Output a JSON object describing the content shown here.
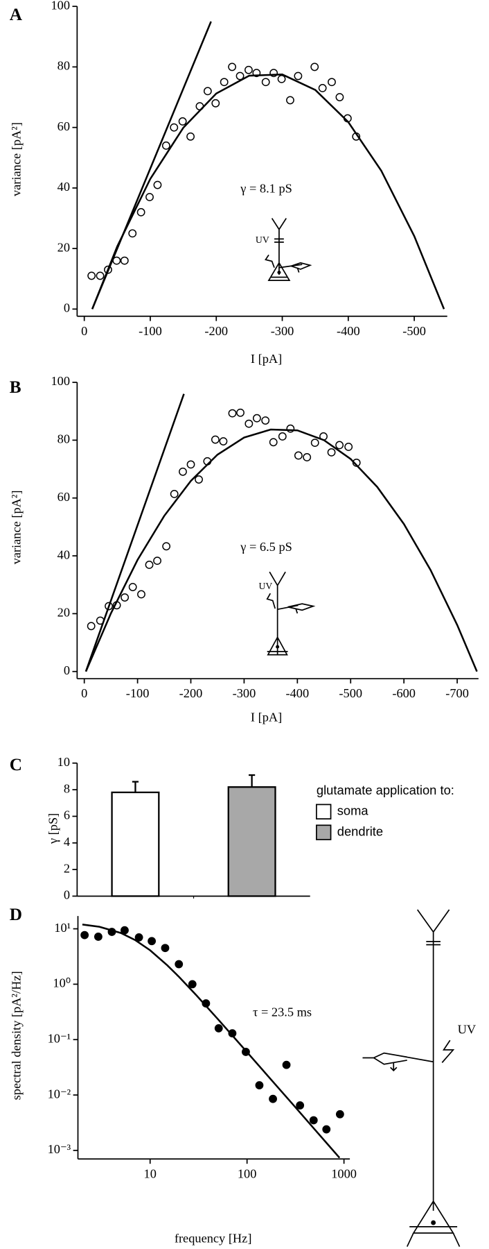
{
  "chart_data": [
    {
      "type": "scatter",
      "panel": "A",
      "xlabel": "I [pA]",
      "ylabel": "variance [pA²]",
      "annotation": "γ = 8.1 pS",
      "icon_label": "UV",
      "xlim": [
        0,
        -550
      ],
      "ylim": [
        0,
        100
      ],
      "xticks": [
        0,
        -100,
        -200,
        -300,
        -400,
        -500
      ],
      "yticks": [
        0,
        20,
        40,
        60,
        80,
        100
      ],
      "color": "#000000",
      "marker_fill": "none",
      "x": [
        -11,
        -24,
        -36,
        -49,
        -61,
        -73,
        -86,
        -99,
        -111,
        -124,
        -136,
        -149,
        -161,
        -175,
        -187,
        -199,
        -212,
        -224,
        -236,
        -249,
        -261,
        -275,
        -287,
        -299,
        -312,
        -324,
        -349,
        -361,
        -375,
        -387,
        -399,
        -412
      ],
      "y": [
        11,
        11,
        13,
        16,
        16,
        25,
        32,
        37,
        41,
        54,
        60,
        62,
        57,
        67,
        72,
        68,
        75,
        80,
        77,
        79,
        78,
        75,
        78,
        76,
        69,
        77,
        80,
        73,
        75,
        70,
        63,
        57
      ],
      "fit": {
        "x": [
          -12,
          -50,
          -100,
          -150,
          -200,
          -250,
          -300,
          -350,
          -400,
          -450,
          -500,
          -545
        ],
        "y": [
          0,
          20.7,
          43.0,
          59.9,
          71.2,
          77.1,
          77.5,
          72.4,
          61.8,
          45.7,
          24.1,
          0
        ]
      },
      "tangent": {
        "x": [
          -12,
          -192
        ],
        "y": [
          0,
          95
        ]
      }
    },
    {
      "type": "scatter",
      "panel": "B",
      "xlabel": "I [pA]",
      "ylabel": "variance [pA²]",
      "annotation": "γ = 6.5 pS",
      "icon_label": "UV",
      "xlim": [
        0,
        -740
      ],
      "ylim": [
        0,
        100
      ],
      "xticks": [
        0,
        -100,
        -200,
        -300,
        -400,
        -500,
        -600,
        -700
      ],
      "yticks": [
        0,
        20,
        40,
        60,
        80,
        100
      ],
      "color": "#000000",
      "marker_fill": "none",
      "x": [
        -13,
        -30,
        -46,
        -61,
        -76,
        -91,
        -107,
        -122,
        -137,
        -154,
        -169,
        -185,
        -200,
        -215,
        -231,
        -246,
        -261,
        -278,
        -293,
        -309,
        -324,
        -340,
        -355,
        -372,
        -387,
        -402,
        -418,
        -433,
        -449,
        -464,
        -479,
        -496,
        -511
      ],
      "y": [
        15.7,
        17.6,
        22.6,
        22.9,
        25.6,
        29.2,
        26.7,
        36.9,
        38.3,
        43.3,
        61.4,
        69.1,
        71.6,
        66.4,
        72.7,
        80.2,
        79.6,
        89.3,
        89.5,
        85.7,
        87.6,
        86.8,
        79.3,
        81.3,
        84.0,
        74.7,
        74.1,
        79.1,
        81.3,
        75.8,
        78.3,
        77.7,
        72.2
      ],
      "fit": {
        "x": [
          -3,
          -50,
          -100,
          -150,
          -200,
          -250,
          -300,
          -350,
          -400,
          -450,
          -500,
          -550,
          -600,
          -650,
          -700,
          -737
        ],
        "y": [
          0,
          20.1,
          38.6,
          53.8,
          65.9,
          75.0,
          80.9,
          83.7,
          83.4,
          80.0,
          73.5,
          63.8,
          51.0,
          35.1,
          16.1,
          0
        ]
      },
      "tangent": {
        "x": [
          -3,
          -187
        ],
        "y": [
          0,
          96
        ]
      }
    },
    {
      "type": "bar",
      "panel": "C",
      "ylabel": "γ [pS]",
      "legend_title": "glutamate application to:",
      "ylim": [
        0,
        10
      ],
      "yticks": [
        0,
        2,
        4,
        6,
        8,
        10
      ],
      "series": [
        {
          "name": "soma",
          "color": "#ffffff",
          "values": [
            7.8
          ],
          "errors": [
            0.8
          ]
        },
        {
          "name": "dendrite",
          "color": "#a8a8a8",
          "values": [
            8.2
          ],
          "errors": [
            0.9
          ]
        }
      ]
    },
    {
      "type": "scatter",
      "panel": "D",
      "xlabel": "frequency [Hz]",
      "ylabel": "spectral density [pA²/Hz]",
      "annotation": "τ = 23.5 ms",
      "icon_label": "UV",
      "xscale": "log",
      "yscale": "log",
      "xlim": [
        1.8,
        1150
      ],
      "ylim": [
        0.0007,
        17
      ],
      "xticks": [
        10,
        100,
        1000
      ],
      "yticks": [
        {
          "value": 10,
          "label": "10¹"
        },
        {
          "value": 1,
          "label": "10⁰"
        },
        {
          "value": 0.1,
          "label": "10⁻¹"
        },
        {
          "value": 0.01,
          "label": "10⁻²"
        },
        {
          "value": 0.001,
          "label": "10⁻³"
        }
      ],
      "color": "#000000",
      "marker_fill": "#000000",
      "x": [
        2.11,
        2.92,
        4.03,
        5.46,
        7.67,
        10.4,
        14.3,
        19.8,
        27.3,
        37.7,
        51.0,
        70.5,
        97.2,
        134,
        185,
        255,
        352,
        486,
        659,
        910
      ],
      "y": [
        7.7,
        7.2,
        8.8,
        9.4,
        7.0,
        6.0,
        4.5,
        2.3,
        1.0,
        0.45,
        0.16,
        0.13,
        0.06,
        0.015,
        0.0085,
        0.035,
        0.0065,
        0.0035,
        0.0024,
        0.0045
      ],
      "fit": {
        "x": [
          2,
          3,
          5,
          7,
          10,
          15,
          20,
          30,
          50,
          70,
          100,
          150,
          200,
          300,
          500,
          700,
          900
        ],
        "y": [
          11.96,
          10.87,
          8.41,
          6.28,
          4.09,
          2.2,
          1.34,
          0.63,
          0.234,
          0.1205,
          0.0593,
          0.0264,
          0.01488,
          0.00662,
          0.00238,
          0.001216,
          0.000736
        ]
      }
    }
  ]
}
